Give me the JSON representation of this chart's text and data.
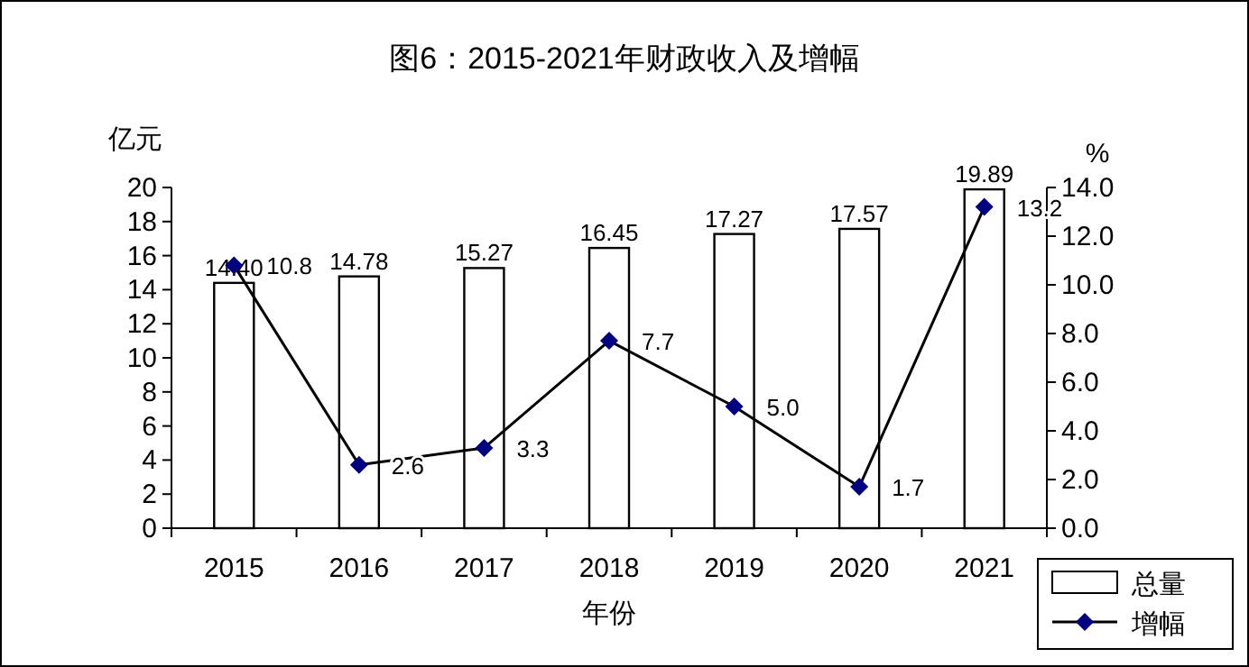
{
  "chart_data": {
    "type": "bar",
    "title": "图6：2015-2021年财政收入及增幅",
    "xlabel": "年份",
    "ylabel": "亿元",
    "y2label": "%",
    "categories": [
      "2015",
      "2016",
      "2017",
      "2018",
      "2019",
      "2020",
      "2021"
    ],
    "series": [
      {
        "name": "总量",
        "color": "#ffffff",
        "values": [
          14.4,
          14.78,
          15.27,
          16.45,
          17.27,
          17.57,
          19.89
        ],
        "value_labels": [
          "14.40",
          "14.78",
          "15.27",
          "16.45",
          "17.27",
          "17.57",
          "19.89"
        ]
      },
      {
        "name": "增幅",
        "type": "line",
        "axis": "y2",
        "color": "#000080",
        "marker": "diamond",
        "values": [
          10.8,
          2.6,
          3.3,
          7.7,
          5.0,
          1.7,
          13.2
        ],
        "value_labels": [
          "10.8",
          "2.6",
          "3.3",
          "7.7",
          "5.0",
          "1.7",
          "13.2"
        ]
      }
    ],
    "ylim": [
      0,
      20
    ],
    "yticks": [
      0,
      2,
      4,
      6,
      8,
      10,
      12,
      14,
      16,
      18,
      20
    ],
    "y2lim": [
      0,
      14
    ],
    "y2ticks": [
      {
        "value": 0,
        "label": "0.0"
      },
      {
        "value": 2,
        "label": "2.0"
      },
      {
        "value": 4,
        "label": "4.0"
      },
      {
        "value": 6,
        "label": "6.0"
      },
      {
        "value": 8,
        "label": "8.0"
      },
      {
        "value": 10,
        "label": "10.0"
      },
      {
        "value": 12,
        "label": "12.0"
      },
      {
        "value": 14,
        "label": "14.0"
      }
    ],
    "legend": "bottom right",
    "grid": false
  }
}
